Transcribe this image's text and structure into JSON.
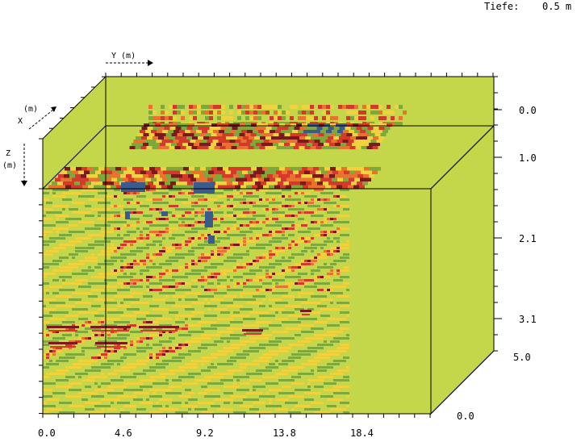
{
  "header": {
    "depth_label": "Tiefe:",
    "depth_value": "0.5 m"
  },
  "axes": {
    "y_axis": {
      "label": "Y (m)",
      "ticks": [
        "0.0",
        "4.6",
        "9.2",
        "13.8",
        "18.4"
      ]
    },
    "x_axis": {
      "label": "X",
      "unit": "(m)",
      "ticks": [
        "0.0",
        "5.0"
      ]
    },
    "z_axis": {
      "label": "Z",
      "unit": "(m)",
      "ticks": [
        "0.0",
        "1.0",
        "2.1",
        "3.1"
      ]
    }
  },
  "colors": {
    "background_volume": "#c4d64a",
    "green": "#7fa83a",
    "yellow": "#f0d23c",
    "orange": "#e8722e",
    "red": "#d33a2a",
    "darkred": "#7a1a1c",
    "blue": "#3a5c8c"
  }
}
